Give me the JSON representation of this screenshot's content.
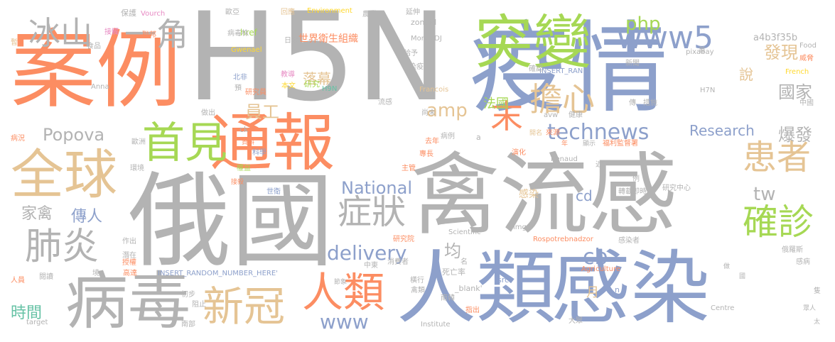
{
  "words": [
    "H5N",
    "案例",
    "疫情",
    "禽流感",
    "俄國",
    "人類",
    "感染",
    "通報",
    "突變",
    "全球",
    "病毒",
    "首見",
    "新冠",
    "人類",
    "肺炎",
    "冰山",
    "一角",
    "末",
    "擔心",
    "www5",
    "php",
    "患者",
    "確診",
    "症狀",
    "technews",
    "Popova",
    "National",
    "delivery",
    "amp",
    "Research",
    "國家",
    "爆發",
    "發現",
    "說",
    "落幕",
    "員工",
    "法國",
    "tw",
    "家禽",
    "傳人",
    "cb",
    "cd",
    "均",
    "月",
    "時間",
    "www",
    "感染",
    "世界衛生組織",
    "a4b3f35b",
    "保護",
    "Vourch",
    "歐亞",
    "href",
    "Environment",
    "回應",
    "農業",
    "延伸",
    "zoneid",
    "MoneyDJ",
    "給予",
    "染疫",
    "接觸",
    "聯邦",
    "病毒株",
    "Gwenael",
    "日本",
    "北非",
    "預",
    "研究員",
    "本文",
    "教導",
    "做出",
    "H9N",
    "研究",
    "Francois",
    "INSERT_RAN",
    "確認",
    "新聞",
    "pixabay",
    "首",
    "Food",
    "威脅",
    "French",
    "H7N",
    "中國",
    "食品",
    "暫",
    "流感",
    "尚未",
    "avw",
    "健康",
    "傳",
    "措施",
    "病況",
    "歐洲",
    "ck",
    "資料",
    "科學",
    "去年",
    "病例",
    "專長",
    "開名",
    "來源",
    "顯示",
    "福利監督署",
    "演化",
    "Renaud",
    "年",
    "近",
    "主管",
    "環境",
    "權益",
    "接殺",
    "世衛",
    "例",
    "轉載",
    "即時",
    "研究中心",
    "Scientific",
    "img",
    "Rospotrebnadzor",
    "作出",
    "感染者",
    "潛在",
    "授權",
    "研究院",
    "中東",
    "消費者",
    "名",
    "死亡率",
    "橫行",
    "禽類",
    "_blank'",
    "src",
    "a",
    "n",
    "俄羅斯",
    "感病",
    "做",
    "國",
    "隻",
    "眾人",
    "太",
    "Agriculture",
    "高達",
    "人員",
    "閱讀",
    "境",
    "INSERT_RANDOM_NUMBER_HERE'",
    "節象",
    "初步",
    "阻止",
    "南部",
    "南韓",
    "指出",
    "大眾",
    "Centre",
    "target",
    "Institute",
    "Anna"
  ]
}
